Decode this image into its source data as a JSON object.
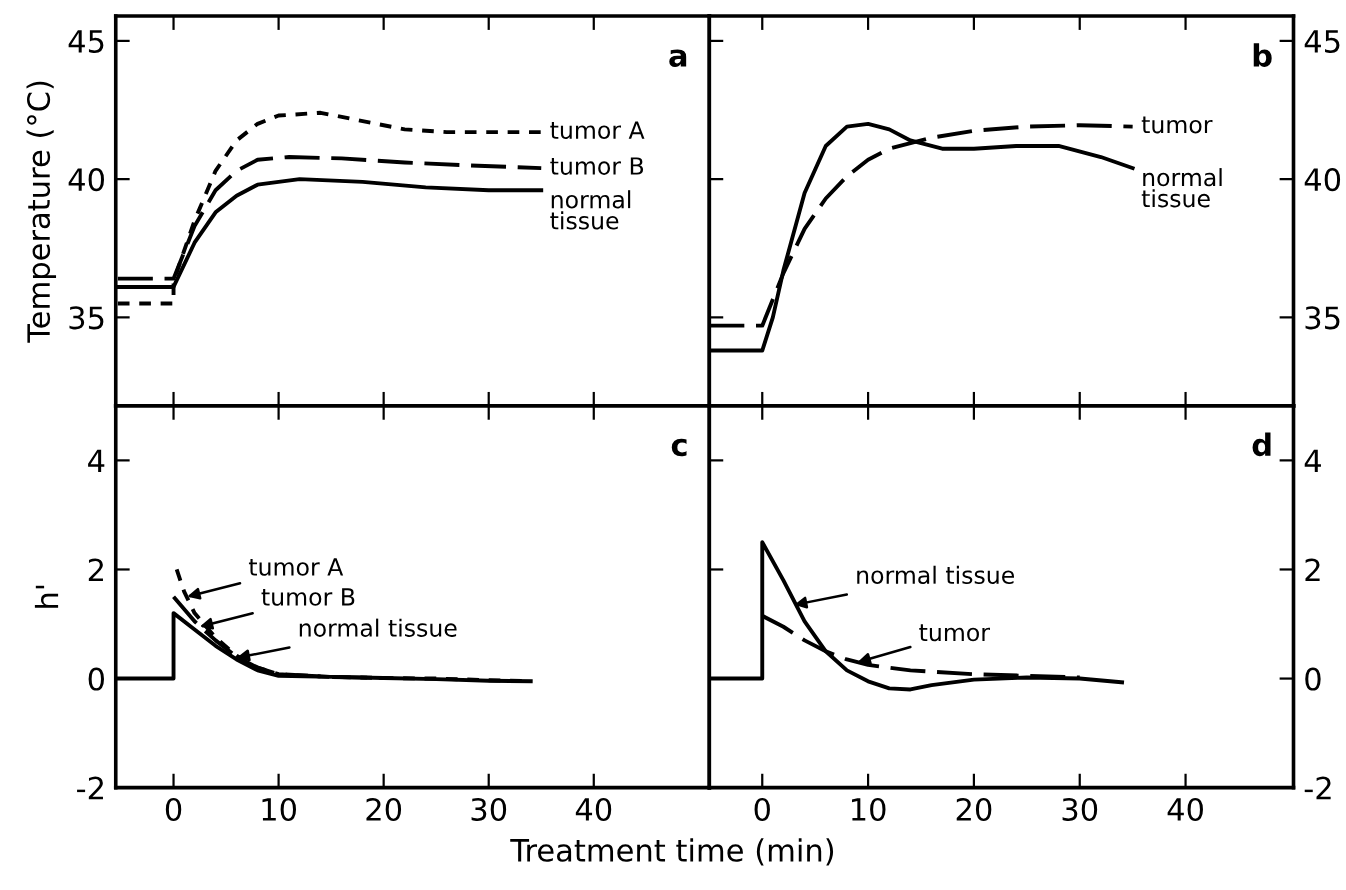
{
  "chart_data": [
    {
      "type": "line",
      "ylabel": "Temperature (°C)",
      "annotations": [
        "a"
      ],
      "xlim": [
        -5.5,
        51
      ],
      "ylim": [
        31.8,
        45.9
      ],
      "xticks": [
        0,
        10,
        20,
        30,
        40
      ],
      "yticks": [
        35,
        40,
        45
      ],
      "tick_labels": "y",
      "grid": false,
      "legend": false,
      "series": [
        {
          "name": "tumor A",
          "color": "#000000",
          "line_style": "dotted",
          "x": [
            -5.3,
            0,
            0,
            2,
            4,
            6,
            8,
            10,
            14,
            18,
            22,
            26,
            30,
            35
          ],
          "values": [
            35.5,
            35.5,
            36.3,
            38.5,
            40.3,
            41.4,
            42,
            42.3,
            42.4,
            42.1,
            41.8,
            41.7,
            41.7,
            41.7
          ]
        },
        {
          "name": "tumor B",
          "color": "#000000",
          "line_style": "dashed",
          "x": [
            -5.3,
            0,
            2,
            4,
            6,
            8,
            11,
            16,
            22,
            28,
            35
          ],
          "values": [
            36.4,
            36.4,
            38.3,
            39.6,
            40.3,
            40.7,
            40.8,
            40.75,
            40.6,
            40.5,
            40.4
          ]
        },
        {
          "name": "normal tissue",
          "color": "#000000",
          "line_style": "solid",
          "x": [
            -5.3,
            0,
            2,
            4,
            6,
            8,
            12,
            18,
            24,
            30,
            35
          ],
          "values": [
            36.1,
            36.1,
            37.7,
            38.8,
            39.4,
            39.8,
            40,
            39.9,
            39.7,
            39.6,
            39.6
          ]
        }
      ]
    },
    {
      "type": "line",
      "annotations": [
        "b"
      ],
      "xlim": [
        -5,
        50.2
      ],
      "ylim": [
        31.8,
        45.9
      ],
      "xticks": [
        0,
        10,
        20,
        30,
        40
      ],
      "yticks": [
        35,
        40,
        45
      ],
      "tick_labels": "y",
      "grid": false,
      "legend": false,
      "series": [
        {
          "name": "tumor",
          "color": "#000000",
          "line_style": "dashed",
          "x": [
            -5,
            0,
            2,
            4,
            6,
            8,
            10,
            12,
            16,
            20,
            25,
            30,
            35
          ],
          "values": [
            34.7,
            34.7,
            36.6,
            38.2,
            39.3,
            40.1,
            40.7,
            41.1,
            41.5,
            41.75,
            41.9,
            41.95,
            41.9
          ]
        },
        {
          "name": "normal tissue",
          "color": "#000000",
          "line_style": "solid",
          "x": [
            -5,
            0,
            1,
            2,
            4,
            6,
            8,
            10,
            12,
            14,
            17,
            20,
            24,
            28,
            32,
            35
          ],
          "values": [
            33.8,
            33.8,
            35,
            36.7,
            39.5,
            41.2,
            41.9,
            42,
            41.8,
            41.4,
            41.1,
            41.1,
            41.2,
            41.2,
            40.8,
            40.4
          ]
        }
      ]
    },
    {
      "type": "line",
      "ylabel": "h'",
      "annotations": [
        "c",
        {
          "text": "tumor A",
          "x": 1.3,
          "y": 1.5
        },
        {
          "text": "tumor B",
          "x": 2.5,
          "y": 0.95
        },
        {
          "text": "normal tissue",
          "x": 6,
          "y": 0.38
        }
      ],
      "xlim": [
        -5.5,
        51
      ],
      "ylim": [
        -2,
        5
      ],
      "xticks": [
        0,
        10,
        20,
        30,
        40
      ],
      "yticks": [
        -2,
        0,
        2,
        4
      ],
      "grid": false,
      "legend": false,
      "series": [
        {
          "color": "#000000",
          "line_style": "dotted",
          "x": [
            0.3,
            1,
            2,
            4,
            6,
            8,
            10,
            15,
            20,
            25,
            30,
            34
          ],
          "values": [
            2.0,
            1.6,
            1.2,
            0.75,
            0.42,
            0.2,
            0.08,
            0.03,
            0.01,
            0,
            -0.03,
            -0.05
          ]
        },
        {
          "color": "#000000",
          "line_style": "dashed",
          "x": [
            0,
            2,
            4,
            6,
            8,
            10,
            15,
            20
          ],
          "values": [
            1.5,
            1.05,
            0.7,
            0.4,
            0.2,
            0.08,
            0.03,
            0.01
          ]
        },
        {
          "color": "#000000",
          "line_style": "solid",
          "x": [
            -5.3,
            0,
            0,
            2,
            4,
            6,
            8,
            10,
            15,
            20,
            25,
            30,
            34
          ],
          "values": [
            0,
            0,
            1.2,
            0.9,
            0.6,
            0.35,
            0.15,
            0.05,
            0.03,
            0.01,
            -0.01,
            -0.04,
            -0.05
          ]
        }
      ]
    },
    {
      "type": "line",
      "xlabel": "Treatment time (min)",
      "annotations": [
        "d",
        {
          "text": "normal tissue",
          "x": 3,
          "y": 1.35
        },
        {
          "text": "tumor",
          "x": 9,
          "y": 0.3
        }
      ],
      "xlim": [
        -5,
        50.2
      ],
      "ylim": [
        -2,
        5
      ],
      "xticks": [
        0,
        10,
        20,
        30,
        40
      ],
      "yticks": [
        -2,
        0,
        2,
        4
      ],
      "grid": false,
      "legend": false,
      "series": [
        {
          "color": "#000000",
          "line_style": "solid",
          "x": [
            -5,
            0,
            0,
            2,
            4,
            6,
            8,
            10,
            12,
            14,
            16,
            20,
            25,
            30,
            34
          ],
          "values": [
            0,
            0,
            2.5,
            1.8,
            1.05,
            0.5,
            0.15,
            -0.05,
            -0.18,
            -0.2,
            -0.12,
            -0.02,
            0.02,
            0,
            -0.07
          ]
        },
        {
          "color": "#000000",
          "line_style": "dashed",
          "x": [
            0,
            2,
            4,
            6,
            8,
            10,
            14,
            20,
            25,
            30
          ],
          "values": [
            1.15,
            0.95,
            0.7,
            0.5,
            0.35,
            0.25,
            0.15,
            0.08,
            0.05,
            0.02
          ]
        }
      ]
    }
  ]
}
